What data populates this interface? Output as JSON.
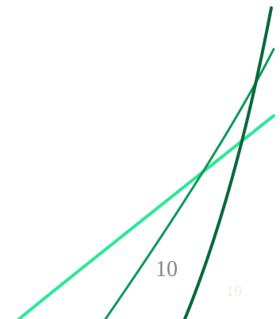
{
  "labels": {
    "primary": "10",
    "secondary": "10"
  },
  "colors": {
    "background": "#ffffff",
    "line_light_green": "#2ee897",
    "line_mid_green": "#0f9a5e",
    "line_dark_green": "#0b6a3c",
    "label_primary": "#888888",
    "label_secondary": "#f2eedc"
  }
}
